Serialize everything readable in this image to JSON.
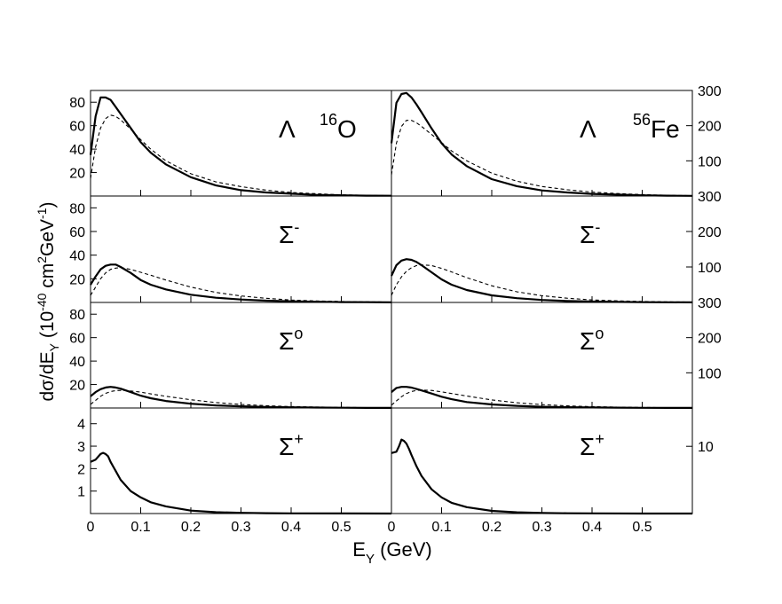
{
  "figure": {
    "xlabel_main": "E",
    "xlabel_sub": "Y",
    "xlabel_unit": " (GeV)",
    "ylabel_parts": {
      "a": "dσ/dE",
      "b": "Y",
      "c": " (10",
      "d": "-40",
      "e": " cm",
      "f": "2",
      "g": "GeV",
      "h": "-1",
      "i": ")"
    }
  },
  "chart_data": [
    {
      "type": "line",
      "id": "O16-Lambda",
      "label_particle": "Λ",
      "label_particle_sup": "",
      "label_nucleus_mass": "16",
      "label_nucleus": "O",
      "xlim": [
        0,
        0.6
      ],
      "ylim": [
        0,
        90
      ],
      "yticks": [
        20,
        40,
        60,
        80
      ],
      "xticks": [
        0,
        0.1,
        0.2,
        0.3,
        0.4,
        0.5
      ],
      "xticklabels": [
        "0",
        "0.1",
        "0.2",
        "0.3",
        "0.4",
        "0.5"
      ],
      "series": [
        {
          "style": "solid",
          "x": [
            0,
            0.01,
            0.02,
            0.03,
            0.04,
            0.05,
            0.06,
            0.08,
            0.1,
            0.12,
            0.15,
            0.2,
            0.25,
            0.3,
            0.35,
            0.4,
            0.45,
            0.5,
            0.55,
            0.6
          ],
          "y": [
            35,
            68,
            84,
            84,
            82,
            76,
            70,
            58,
            46,
            37,
            27,
            16,
            9,
            5,
            3,
            2,
            1,
            0.6,
            0.3,
            0.2
          ]
        },
        {
          "style": "dashed",
          "x": [
            0,
            0.01,
            0.02,
            0.03,
            0.04,
            0.05,
            0.06,
            0.08,
            0.1,
            0.12,
            0.15,
            0.2,
            0.25,
            0.3,
            0.35,
            0.4,
            0.45,
            0.5,
            0.55,
            0.6
          ],
          "y": [
            15,
            42,
            58,
            66,
            69,
            68,
            65,
            57,
            48,
            40,
            30,
            19,
            12,
            8,
            5,
            3,
            2,
            1,
            0.6,
            0.3
          ]
        }
      ]
    },
    {
      "type": "line",
      "id": "Fe56-Lambda",
      "label_particle": "Λ",
      "label_particle_sup": "",
      "label_nucleus_mass": "56",
      "label_nucleus": "Fe",
      "xlim": [
        0,
        0.6
      ],
      "ylim": [
        0,
        300
      ],
      "yticks": [
        100,
        200,
        300
      ],
      "xticks": [
        0,
        0.1,
        0.2,
        0.3,
        0.4,
        0.5
      ],
      "xticklabels": [
        "0",
        "0.1",
        "0.2",
        "0.3",
        "0.4",
        "0.5"
      ],
      "series": [
        {
          "style": "solid",
          "x": [
            0,
            0.01,
            0.02,
            0.03,
            0.04,
            0.05,
            0.06,
            0.08,
            0.1,
            0.12,
            0.15,
            0.2,
            0.25,
            0.3,
            0.35,
            0.4,
            0.45,
            0.5,
            0.55,
            0.6
          ],
          "y": [
            150,
            265,
            290,
            293,
            280,
            260,
            238,
            192,
            150,
            118,
            85,
            48,
            28,
            16,
            10,
            6,
            4,
            2,
            1,
            0.5
          ]
        },
        {
          "style": "dashed",
          "x": [
            0,
            0.01,
            0.02,
            0.03,
            0.04,
            0.05,
            0.06,
            0.08,
            0.1,
            0.12,
            0.15,
            0.2,
            0.25,
            0.3,
            0.35,
            0.4,
            0.45,
            0.5,
            0.55,
            0.6
          ],
          "y": [
            60,
            150,
            198,
            215,
            215,
            208,
            198,
            175,
            152,
            128,
            100,
            65,
            42,
            27,
            18,
            11,
            7,
            4,
            2,
            1
          ]
        }
      ]
    },
    {
      "type": "line",
      "id": "O16-SigmaMinus",
      "label_particle": "Σ",
      "label_particle_sup": "-",
      "label_nucleus_mass": "",
      "label_nucleus": "",
      "xlim": [
        0,
        0.6
      ],
      "ylim": [
        0,
        90
      ],
      "yticks": [
        20,
        40,
        60,
        80
      ],
      "xticks": [
        0,
        0.1,
        0.2,
        0.3,
        0.4,
        0.5
      ],
      "xticklabels": [
        "0",
        "0.1",
        "0.2",
        "0.3",
        "0.4",
        "0.5"
      ],
      "series": [
        {
          "style": "solid",
          "x": [
            0,
            0.01,
            0.02,
            0.03,
            0.04,
            0.05,
            0.06,
            0.08,
            0.1,
            0.12,
            0.15,
            0.2,
            0.25,
            0.3,
            0.35,
            0.4,
            0.45,
            0.5,
            0.55,
            0.6
          ],
          "y": [
            15,
            22,
            28,
            31,
            32,
            32,
            30,
            25,
            19,
            15,
            11,
            6.5,
            4,
            2.5,
            1.5,
            1,
            0.6,
            0.3,
            0.2,
            0.1
          ]
        },
        {
          "style": "dashed",
          "x": [
            0,
            0.01,
            0.02,
            0.03,
            0.04,
            0.05,
            0.06,
            0.08,
            0.1,
            0.12,
            0.15,
            0.2,
            0.25,
            0.3,
            0.35,
            0.4,
            0.45,
            0.5,
            0.55,
            0.6
          ],
          "y": [
            6,
            13,
            20,
            25,
            28,
            29,
            29.5,
            28,
            25.5,
            23,
            19,
            13,
            8.5,
            5.5,
            3.5,
            2,
            1.3,
            0.8,
            0.5,
            0.3
          ]
        }
      ]
    },
    {
      "type": "line",
      "id": "Fe56-SigmaMinus",
      "label_particle": "Σ",
      "label_particle_sup": "-",
      "label_nucleus_mass": "",
      "label_nucleus": "",
      "xlim": [
        0,
        0.6
      ],
      "ylim": [
        0,
        300
      ],
      "yticks": [
        100,
        200,
        300
      ],
      "xticks": [
        0,
        0.1,
        0.2,
        0.3,
        0.4,
        0.5
      ],
      "xticklabels": [
        "0",
        "0.1",
        "0.2",
        "0.3",
        "0.4",
        "0.5"
      ],
      "series": [
        {
          "style": "solid",
          "x": [
            0,
            0.01,
            0.02,
            0.03,
            0.04,
            0.05,
            0.06,
            0.08,
            0.1,
            0.12,
            0.15,
            0.2,
            0.25,
            0.3,
            0.35,
            0.4,
            0.45,
            0.5,
            0.55,
            0.6
          ],
          "y": [
            75,
            105,
            118,
            122,
            120,
            114,
            105,
            85,
            65,
            50,
            35,
            20,
            12,
            7,
            4,
            2.5,
            1.5,
            0.8,
            0.4,
            0.2
          ]
        },
        {
          "style": "dashed",
          "x": [
            0,
            0.01,
            0.02,
            0.03,
            0.04,
            0.05,
            0.06,
            0.08,
            0.1,
            0.12,
            0.15,
            0.2,
            0.25,
            0.3,
            0.35,
            0.4,
            0.45,
            0.5,
            0.55,
            0.6
          ],
          "y": [
            20,
            50,
            72,
            88,
            98,
            104,
            106,
            104,
            96,
            86,
            70,
            47,
            30,
            19,
            12,
            7,
            4.5,
            2.8,
            1.7,
            1
          ]
        }
      ]
    },
    {
      "type": "line",
      "id": "O16-SigmaZero",
      "label_particle": "Σ",
      "label_particle_sup": "o",
      "label_nucleus_mass": "",
      "label_nucleus": "",
      "xlim": [
        0,
        0.6
      ],
      "ylim": [
        0,
        90
      ],
      "yticks": [
        20,
        40,
        60,
        80
      ],
      "xticks": [
        0,
        0.1,
        0.2,
        0.3,
        0.4,
        0.5
      ],
      "xticklabels": [
        "0",
        "0.1",
        "0.2",
        "0.3",
        "0.4",
        "0.5"
      ],
      "series": [
        {
          "style": "solid",
          "x": [
            0,
            0.01,
            0.02,
            0.03,
            0.04,
            0.05,
            0.06,
            0.08,
            0.1,
            0.12,
            0.15,
            0.2,
            0.25,
            0.3,
            0.35,
            0.4,
            0.45,
            0.5,
            0.55,
            0.6
          ],
          "y": [
            10,
            13.5,
            16,
            17.5,
            18,
            17.5,
            16.5,
            13.5,
            10.5,
            8.3,
            6,
            3.6,
            2.2,
            1.4,
            0.9,
            0.6,
            0.4,
            0.2,
            0.1,
            0.05
          ]
        },
        {
          "style": "dashed",
          "x": [
            0,
            0.01,
            0.02,
            0.03,
            0.04,
            0.05,
            0.06,
            0.08,
            0.1,
            0.12,
            0.15,
            0.2,
            0.25,
            0.3,
            0.35,
            0.4,
            0.45,
            0.5,
            0.55,
            0.6
          ],
          "y": [
            3,
            6.5,
            10,
            12.5,
            14,
            14.8,
            15,
            14.5,
            13.5,
            12,
            10,
            7,
            4.6,
            3,
            2,
            1.2,
            0.8,
            0.5,
            0.3,
            0.2
          ]
        }
      ]
    },
    {
      "type": "line",
      "id": "Fe56-SigmaZero",
      "label_particle": "Σ",
      "label_particle_sup": "o",
      "label_nucleus_mass": "",
      "label_nucleus": "",
      "xlim": [
        0,
        0.6
      ],
      "ylim": [
        0,
        300
      ],
      "yticks": [
        100,
        200,
        300
      ],
      "xticks": [
        0,
        0.1,
        0.2,
        0.3,
        0.4,
        0.5
      ],
      "xticklabels": [
        "0",
        "0.1",
        "0.2",
        "0.3",
        "0.4",
        "0.5"
      ],
      "series": [
        {
          "style": "solid",
          "x": [
            0,
            0.01,
            0.02,
            0.03,
            0.04,
            0.05,
            0.06,
            0.08,
            0.1,
            0.12,
            0.15,
            0.2,
            0.25,
            0.3,
            0.35,
            0.4,
            0.45,
            0.5,
            0.55,
            0.6
          ],
          "y": [
            45,
            57,
            60,
            60,
            58,
            54,
            50,
            41,
            32,
            25,
            17,
            10,
            6,
            3.5,
            2.2,
            1.4,
            0.9,
            0.5,
            0.3,
            0.2
          ]
        },
        {
          "style": "dashed",
          "x": [
            0,
            0.01,
            0.02,
            0.03,
            0.04,
            0.05,
            0.06,
            0.08,
            0.1,
            0.12,
            0.15,
            0.2,
            0.25,
            0.3,
            0.35,
            0.4,
            0.45,
            0.5,
            0.55,
            0.6
          ],
          "y": [
            8,
            20,
            32,
            41,
            47,
            50,
            51,
            50,
            46,
            41,
            34,
            23,
            15,
            9.5,
            6,
            3.8,
            2.4,
            1.5,
            0.9,
            0.5
          ]
        }
      ]
    },
    {
      "type": "line",
      "id": "O16-SigmaPlus",
      "label_particle": "Σ",
      "label_particle_sup": "+",
      "label_nucleus_mass": "",
      "label_nucleus": "",
      "xlim": [
        0,
        0.6
      ],
      "ylim": [
        0,
        4.7
      ],
      "yticks": [
        1,
        2,
        3,
        4
      ],
      "xticks": [
        0,
        0.1,
        0.2,
        0.3,
        0.4,
        0.5
      ],
      "xticklabels": [
        "0",
        "0.1",
        "0.2",
        "0.3",
        "0.4",
        "0.5"
      ],
      "series": [
        {
          "style": "solid",
          "x": [
            0,
            0.01,
            0.02,
            0.025,
            0.03,
            0.035,
            0.04,
            0.05,
            0.06,
            0.08,
            0.1,
            0.12,
            0.15,
            0.2,
            0.25,
            0.3,
            0.35,
            0.4,
            0.5,
            0.6
          ],
          "y": [
            2.3,
            2.4,
            2.65,
            2.7,
            2.65,
            2.55,
            2.3,
            1.9,
            1.5,
            1.0,
            0.72,
            0.5,
            0.32,
            0.13,
            0.06,
            0.03,
            0.015,
            0.008,
            0.003,
            0.001
          ]
        }
      ]
    },
    {
      "type": "line",
      "id": "Fe56-SigmaPlus",
      "label_particle": "Σ",
      "label_particle_sup": "+",
      "label_nucleus_mass": "",
      "label_nucleus": "",
      "xlim": [
        0,
        0.6
      ],
      "ylim": [
        0,
        15.7
      ],
      "yticks": [
        10
      ],
      "xticks": [
        0,
        0.1,
        0.2,
        0.3,
        0.4,
        0.5
      ],
      "xticklabels": [
        "0",
        "0.1",
        "0.2",
        "0.3",
        "0.4",
        "0.5"
      ],
      "series": [
        {
          "style": "solid",
          "x": [
            0,
            0.01,
            0.015,
            0.02,
            0.025,
            0.03,
            0.035,
            0.04,
            0.05,
            0.06,
            0.08,
            0.1,
            0.12,
            0.15,
            0.2,
            0.25,
            0.3,
            0.35,
            0.4,
            0.5,
            0.6
          ],
          "y": [
            9,
            9.2,
            10,
            11,
            10.8,
            10.4,
            9.6,
            8.7,
            7,
            5.6,
            3.6,
            2.4,
            1.6,
            0.95,
            0.4,
            0.18,
            0.08,
            0.04,
            0.02,
            0.006,
            0.002
          ]
        }
      ]
    }
  ]
}
